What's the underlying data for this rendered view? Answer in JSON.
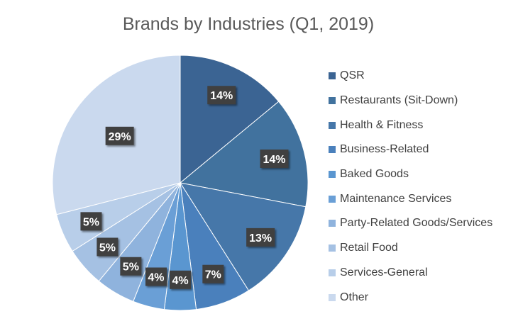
{
  "chart_data": {
    "type": "pie",
    "title": "Brands by Industries (Q1, 2019)",
    "categories": [
      "QSR",
      "Restaurants (Sit-Down)",
      "Health & Fitness",
      "Business-Related",
      "Baked Goods",
      "Maintenance Services",
      "Party-Related Goods/Services",
      "Retail Food",
      "Services-General",
      "Other"
    ],
    "values": [
      14,
      14,
      13,
      7,
      4,
      4,
      5,
      5,
      5,
      29
    ],
    "labels": [
      "14%",
      "14%",
      "13%",
      "7%",
      "4%",
      "4%",
      "5%",
      "5%",
      "5%",
      "29%"
    ],
    "colors": [
      "#3b6493",
      "#41729e",
      "#4677a9",
      "#4a80bc",
      "#5a96d0",
      "#6a9fd6",
      "#8fb3dd",
      "#a5c1e3",
      "#b8cee9",
      "#cad9ee"
    ],
    "legend_position": "right",
    "start_angle_deg": 0,
    "direction": "clockwise"
  }
}
